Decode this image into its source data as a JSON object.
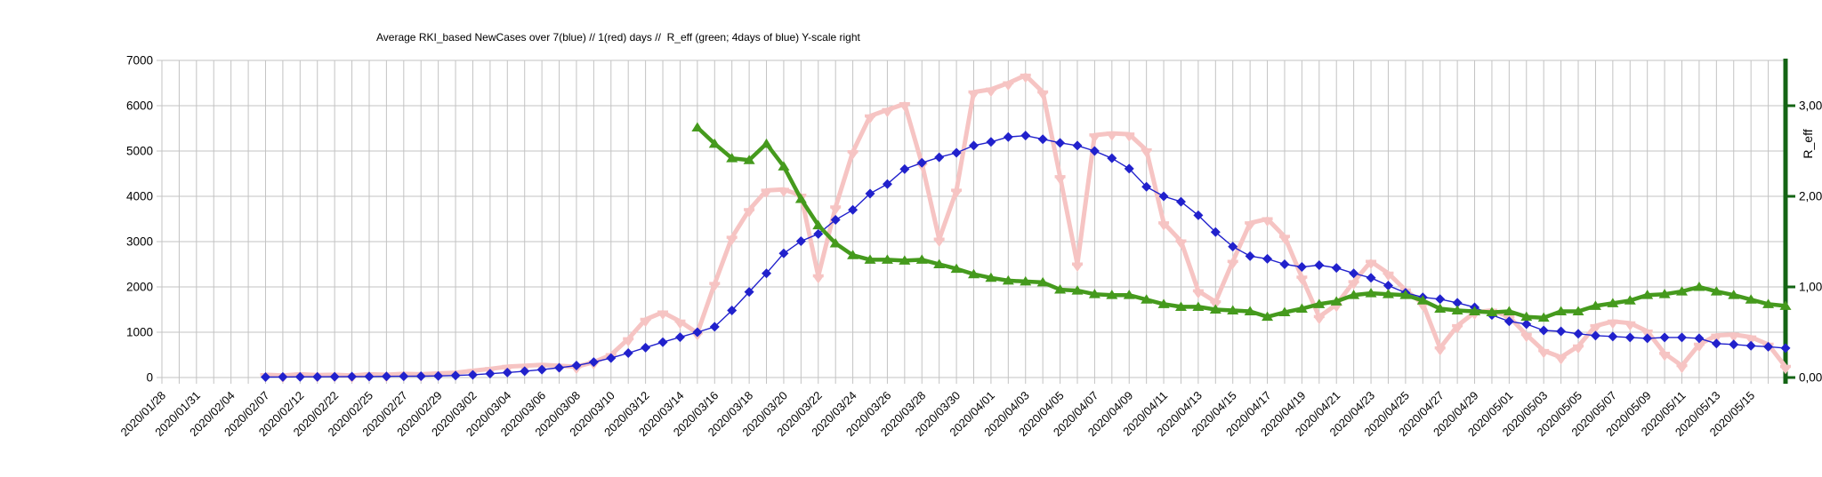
{
  "title": "Average RKI_based NewCases over 7(blue) // 1(red) days //  R_eff (green; 4days of blue) Y-scale right",
  "colors": {
    "background": "#ffffff",
    "gridline": "#c3c3c3",
    "text": "#000000",
    "blue_series": "#2121cc",
    "pink_series": "#f6c4c3",
    "green_series": "#459a1d",
    "right_axis": "#146414"
  },
  "chart_data": {
    "type": "line",
    "title": "Average RKI_based NewCases over 7(blue) // 1(red) days //  R_eff (green; 4days of blue) Y-scale right",
    "grid": true,
    "legend_position": "none",
    "y_left": {
      "label": "",
      "min": 0,
      "max": 7000,
      "tick_step": 1000,
      "tick_labels": [
        "0",
        "1000",
        "2000",
        "3000",
        "4000",
        "5000",
        "6000",
        "7000"
      ]
    },
    "y_right": {
      "label": "R_eff",
      "min": 0,
      "max": 3.5,
      "ticks": [
        0,
        1,
        2,
        3
      ],
      "tick_labels": [
        "0,00",
        "1,00",
        "2,00",
        "3,00"
      ]
    },
    "x": {
      "n_points": 95,
      "points_per_label": 2,
      "label_rotation_deg": -45,
      "tick_labels": [
        "2020/01/28",
        "2020/01/31",
        "2020/02/04",
        "2020/02/07",
        "2020/02/12",
        "2020/02/22",
        "2020/02/25",
        "2020/02/27",
        "2020/02/29",
        "2020/03/02",
        "2020/03/04",
        "2020/03/06",
        "2020/03/08",
        "2020/03/10",
        "2020/03/12",
        "2020/03/14",
        "2020/03/16",
        "2020/03/18",
        "2020/03/20",
        "2020/03/22",
        "2020/03/24",
        "2020/03/26",
        "2020/03/28",
        "2020/03/30",
        "2020/04/01",
        "2020/04/03",
        "2020/04/05",
        "2020/04/07",
        "2020/04/09",
        "2020/04/11",
        "2020/04/13",
        "2020/04/15",
        "2020/04/17",
        "2020/04/19",
        "2020/04/21",
        "2020/04/23",
        "2020/04/25",
        "2020/04/27",
        "2020/04/29",
        "2020/05/01",
        "2020/05/03",
        "2020/05/05",
        "2020/05/07",
        "2020/05/09",
        "2020/05/11",
        "2020/05/13",
        "2020/05/15"
      ]
    },
    "series": [
      {
        "name": "NewCases 1-day average (red/pink)",
        "axis": "left",
        "marker": "down-arrow",
        "color": "#f6c4c3",
        "line_width": 5,
        "values": [
          null,
          null,
          null,
          null,
          null,
          null,
          60,
          45,
          70,
          55,
          60,
          45,
          70,
          60,
          80,
          70,
          90,
          105,
          150,
          190,
          240,
          260,
          280,
          260,
          240,
          340,
          500,
          850,
          1280,
          1440,
          1240,
          980,
          2070,
          3090,
          3700,
          4130,
          4150,
          4020,
          2240,
          3760,
          4980,
          5770,
          5910,
          6040,
          4720,
          3050,
          4130,
          6300,
          6360,
          6500,
          6670,
          6300,
          4430,
          2500,
          5350,
          5390,
          5370,
          5020,
          3410,
          3010,
          1910,
          1670,
          2560,
          3410,
          3500,
          3110,
          2210,
          1340,
          1610,
          2110,
          2560,
          2300,
          1930,
          1630,
          650,
          1140,
          1440,
          1480,
          1340,
          945,
          590,
          450,
          690,
          1140,
          1240,
          1200,
          1020,
          530,
          260,
          730,
          930,
          950,
          890,
          730,
          240
        ]
      },
      {
        "name": "NewCases 7-day average (blue)",
        "axis": "left",
        "marker": "diamond",
        "color": "#2121cc",
        "line_width": 1.4,
        "values": [
          null,
          null,
          null,
          null,
          null,
          null,
          10,
          12,
          15,
          15,
          18,
          20,
          22,
          25,
          28,
          30,
          35,
          45,
          60,
          85,
          110,
          140,
          175,
          215,
          265,
          340,
          430,
          540,
          660,
          780,
          890,
          1000,
          1120,
          1480,
          1890,
          2300,
          2740,
          3010,
          3170,
          3480,
          3700,
          4060,
          4270,
          4600,
          4740,
          4860,
          4960,
          5120,
          5200,
          5310,
          5340,
          5260,
          5180,
          5120,
          5000,
          4840,
          4610,
          4210,
          4000,
          3880,
          3580,
          3210,
          2890,
          2680,
          2620,
          2500,
          2440,
          2480,
          2420,
          2300,
          2200,
          2030,
          1870,
          1770,
          1730,
          1650,
          1550,
          1380,
          1240,
          1180,
          1040,
          1020,
          965,
          925,
          905,
          885,
          865,
          885,
          885,
          865,
          750,
          730,
          700,
          680,
          650
        ]
      },
      {
        "name": "R_eff (green; 4days of blue) right scale",
        "axis": "right",
        "marker": "triangle-up",
        "color": "#459a1d",
        "line_width": 4.5,
        "values": [
          null,
          null,
          null,
          null,
          null,
          null,
          null,
          null,
          null,
          null,
          null,
          null,
          null,
          null,
          null,
          null,
          null,
          null,
          null,
          null,
          null,
          null,
          null,
          null,
          null,
          null,
          null,
          null,
          null,
          null,
          null,
          2.76,
          2.58,
          2.42,
          2.4,
          2.58,
          2.33,
          1.97,
          1.68,
          1.48,
          1.35,
          1.3,
          1.3,
          1.29,
          1.3,
          1.25,
          1.2,
          1.14,
          1.1,
          1.07,
          1.06,
          1.05,
          0.97,
          0.96,
          0.92,
          0.91,
          0.91,
          0.86,
          0.81,
          0.78,
          0.78,
          0.75,
          0.74,
          0.73,
          0.67,
          0.72,
          0.76,
          0.81,
          0.84,
          0.91,
          0.93,
          0.92,
          0.91,
          0.85,
          0.76,
          0.74,
          0.73,
          0.72,
          0.73,
          0.67,
          0.66,
          0.73,
          0.73,
          0.79,
          0.82,
          0.85,
          0.91,
          0.92,
          0.95,
          1.0,
          0.95,
          0.91,
          0.86,
          0.81,
          0.79
        ]
      }
    ]
  }
}
